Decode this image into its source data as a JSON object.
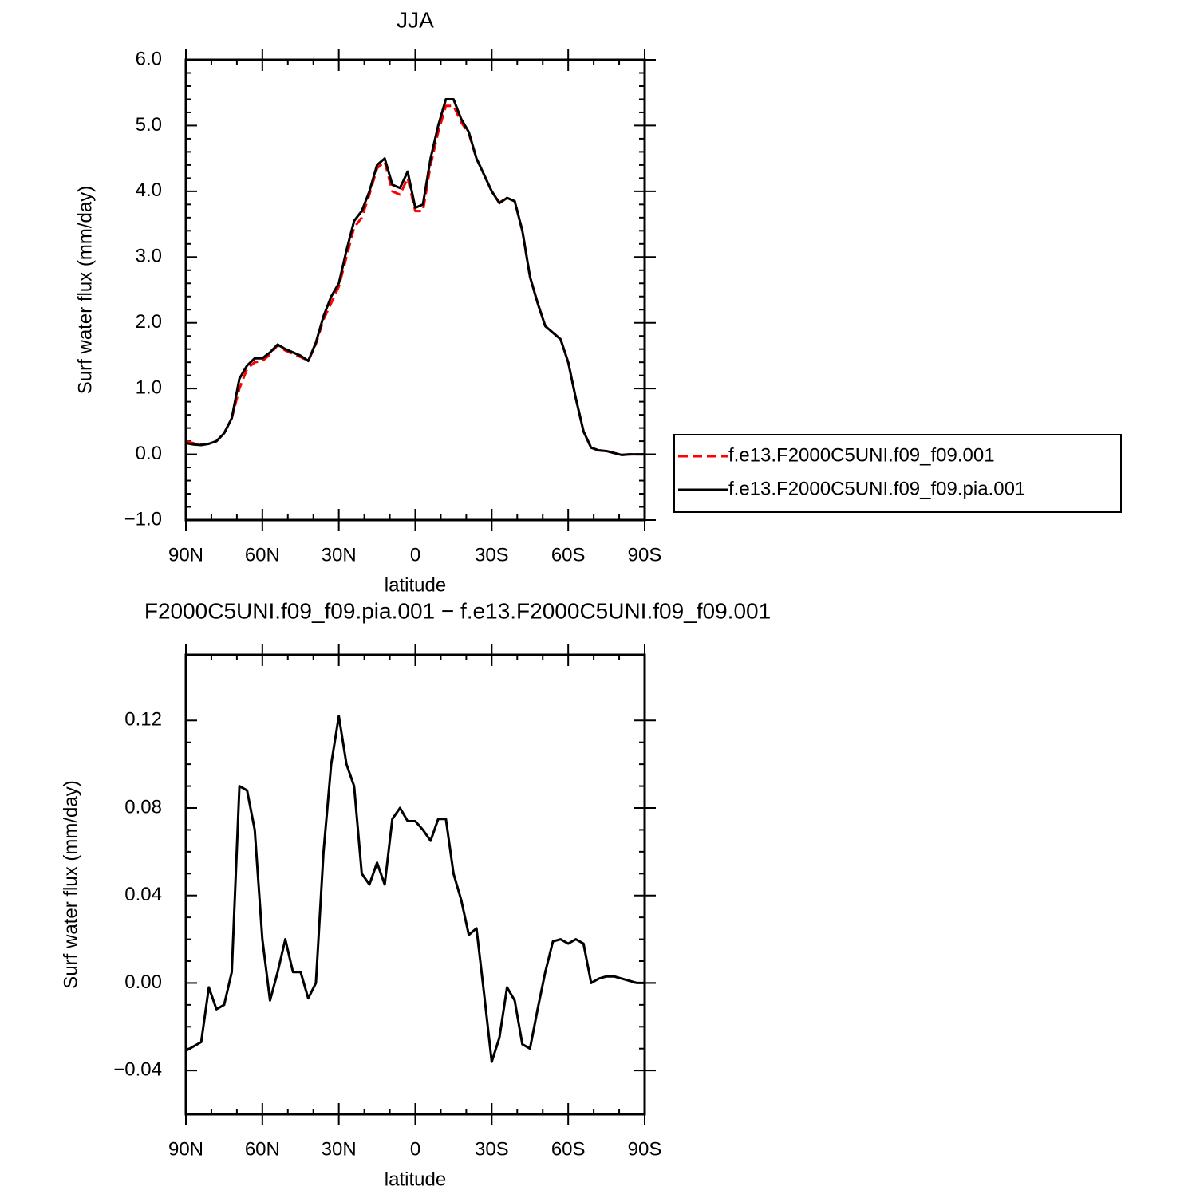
{
  "chart_data": [
    {
      "type": "line",
      "title": "JJA",
      "x_label": "latitude",
      "y_label": "Surf water flux (mm/day)",
      "x": [
        90,
        87,
        84,
        81,
        78,
        75,
        72,
        69,
        66,
        63,
        60,
        57,
        54,
        51,
        48,
        45,
        42,
        39,
        36,
        33,
        30,
        27,
        24,
        21,
        18,
        15,
        12,
        9,
        6,
        3,
        0,
        -3,
        -6,
        -9,
        -12,
        -15,
        -18,
        -21,
        -24,
        -27,
        -30,
        -33,
        -36,
        -39,
        -42,
        -45,
        -48,
        -51,
        -54,
        -57,
        -60,
        -63,
        -66,
        -69,
        -72,
        -75,
        -78,
        -81,
        -84,
        -87,
        -90
      ],
      "series": [
        {
          "name": "f.e13.F2000C5UNI.f09_f09.001",
          "color": "#ff0000",
          "line_style": "dashed",
          "values": [
            0.2,
            0.17,
            0.15,
            0.16,
            0.2,
            0.32,
            0.55,
            1.0,
            1.3,
            1.4,
            1.42,
            1.52,
            1.66,
            1.58,
            1.53,
            1.48,
            1.42,
            1.68,
            2.05,
            2.3,
            2.55,
            3.0,
            3.45,
            3.6,
            3.95,
            4.35,
            4.45,
            4.0,
            3.95,
            4.2,
            3.7,
            3.7,
            4.4,
            4.9,
            5.3,
            5.3,
            5.05,
            4.88,
            4.5,
            4.25,
            4.0,
            3.83,
            3.9,
            3.85,
            3.4,
            2.7,
            2.3,
            1.95,
            1.85,
            1.75,
            1.4,
            0.85,
            0.35,
            0.1,
            0.06,
            0.05,
            0.02,
            -0.01,
            0.0,
            0.0,
            0.0
          ]
        },
        {
          "name": "f.e13.F2000C5UNI.f09_f09.pia.001",
          "color": "#000000",
          "line_style": "solid",
          "values": [
            0.17,
            0.15,
            0.14,
            0.16,
            0.2,
            0.32,
            0.55,
            1.15,
            1.35,
            1.46,
            1.46,
            1.55,
            1.67,
            1.6,
            1.55,
            1.5,
            1.42,
            1.7,
            2.1,
            2.4,
            2.6,
            3.1,
            3.55,
            3.7,
            4.0,
            4.4,
            4.5,
            4.1,
            4.05,
            4.3,
            3.75,
            3.8,
            4.5,
            5.0,
            5.4,
            5.4,
            5.1,
            4.9,
            4.5,
            4.25,
            4.0,
            3.82,
            3.9,
            3.85,
            3.4,
            2.7,
            2.3,
            1.95,
            1.85,
            1.75,
            1.4,
            0.85,
            0.35,
            0.1,
            0.06,
            0.05,
            0.02,
            -0.01,
            0.0,
            0.0,
            0.0
          ]
        }
      ],
      "xlim": [
        90,
        -90
      ],
      "xticks": [
        {
          "value": 90,
          "label": "90N"
        },
        {
          "value": 60,
          "label": "60N"
        },
        {
          "value": 30,
          "label": "30N"
        },
        0,
        {
          "value": -30,
          "label": "30S"
        },
        {
          "value": -60,
          "label": "60S"
        },
        {
          "value": -90,
          "label": "90S"
        }
      ],
      "ylim": [
        -1,
        6
      ],
      "yticks": [
        {
          "value": -1,
          "label": "−1.0"
        },
        {
          "value": 0,
          "label": "0.0"
        },
        {
          "value": 1,
          "label": "1.0"
        },
        {
          "value": 2,
          "label": "2.0"
        },
        {
          "value": 3,
          "label": "3.0"
        },
        {
          "value": 4,
          "label": "4.0"
        },
        {
          "value": 5,
          "label": "5.0"
        },
        {
          "value": 6,
          "label": "6.0"
        }
      ],
      "legend": "right"
    },
    {
      "type": "line",
      "title": "F2000C5UNI.f09_f09.pia.001 − f.e13.F2000C5UNI.f09_f09.001",
      "x_label": "latitude",
      "y_label": "Surf water flux (mm/day)",
      "x": [
        90,
        87,
        84,
        81,
        78,
        75,
        72,
        69,
        66,
        63,
        60,
        57,
        54,
        51,
        48,
        45,
        42,
        39,
        36,
        33,
        30,
        27,
        24,
        21,
        18,
        15,
        12,
        9,
        6,
        3,
        0,
        -3,
        -6,
        -9,
        -12,
        -15,
        -18,
        -21,
        -24,
        -27,
        -30,
        -33,
        -36,
        -39,
        -42,
        -45,
        -48,
        -51,
        -54,
        -57,
        -60,
        -63,
        -66,
        -69,
        -72,
        -75,
        -78,
        -81,
        -84,
        -87,
        -90
      ],
      "color": "#000000",
      "values": [
        -0.031,
        -0.029,
        -0.027,
        -0.002,
        -0.012,
        -0.01,
        0.005,
        0.09,
        0.088,
        0.07,
        0.02,
        -0.008,
        0.005,
        0.02,
        0.005,
        0.005,
        -0.007,
        0.0,
        0.06,
        0.1,
        0.122,
        0.1,
        0.09,
        0.05,
        0.045,
        0.055,
        0.045,
        0.075,
        0.08,
        0.074,
        0.074,
        0.07,
        0.065,
        0.075,
        0.075,
        0.05,
        0.038,
        0.022,
        0.025,
        -0.005,
        -0.036,
        -0.025,
        -0.002,
        -0.008,
        -0.028,
        -0.03,
        -0.012,
        0.005,
        0.019,
        0.02,
        0.018,
        0.02,
        0.018,
        0.0,
        0.002,
        0.003,
        0.003,
        0.002,
        0.001,
        0.0,
        0.0
      ],
      "xlim": [
        90,
        -90
      ],
      "xticks": [
        {
          "value": 90,
          "label": "90N"
        },
        {
          "value": 60,
          "label": "60N"
        },
        {
          "value": 30,
          "label": "30N"
        },
        0,
        {
          "value": -30,
          "label": "30S"
        },
        {
          "value": -60,
          "label": "60S"
        },
        {
          "value": -90,
          "label": "90S"
        }
      ],
      "ylim": [
        -0.06,
        0.15
      ],
      "yticks": [
        {
          "value": -0.04,
          "label": "−0.04"
        },
        {
          "value": 0,
          "label": "0.00"
        },
        0.04,
        0.08,
        0.12
      ]
    }
  ]
}
